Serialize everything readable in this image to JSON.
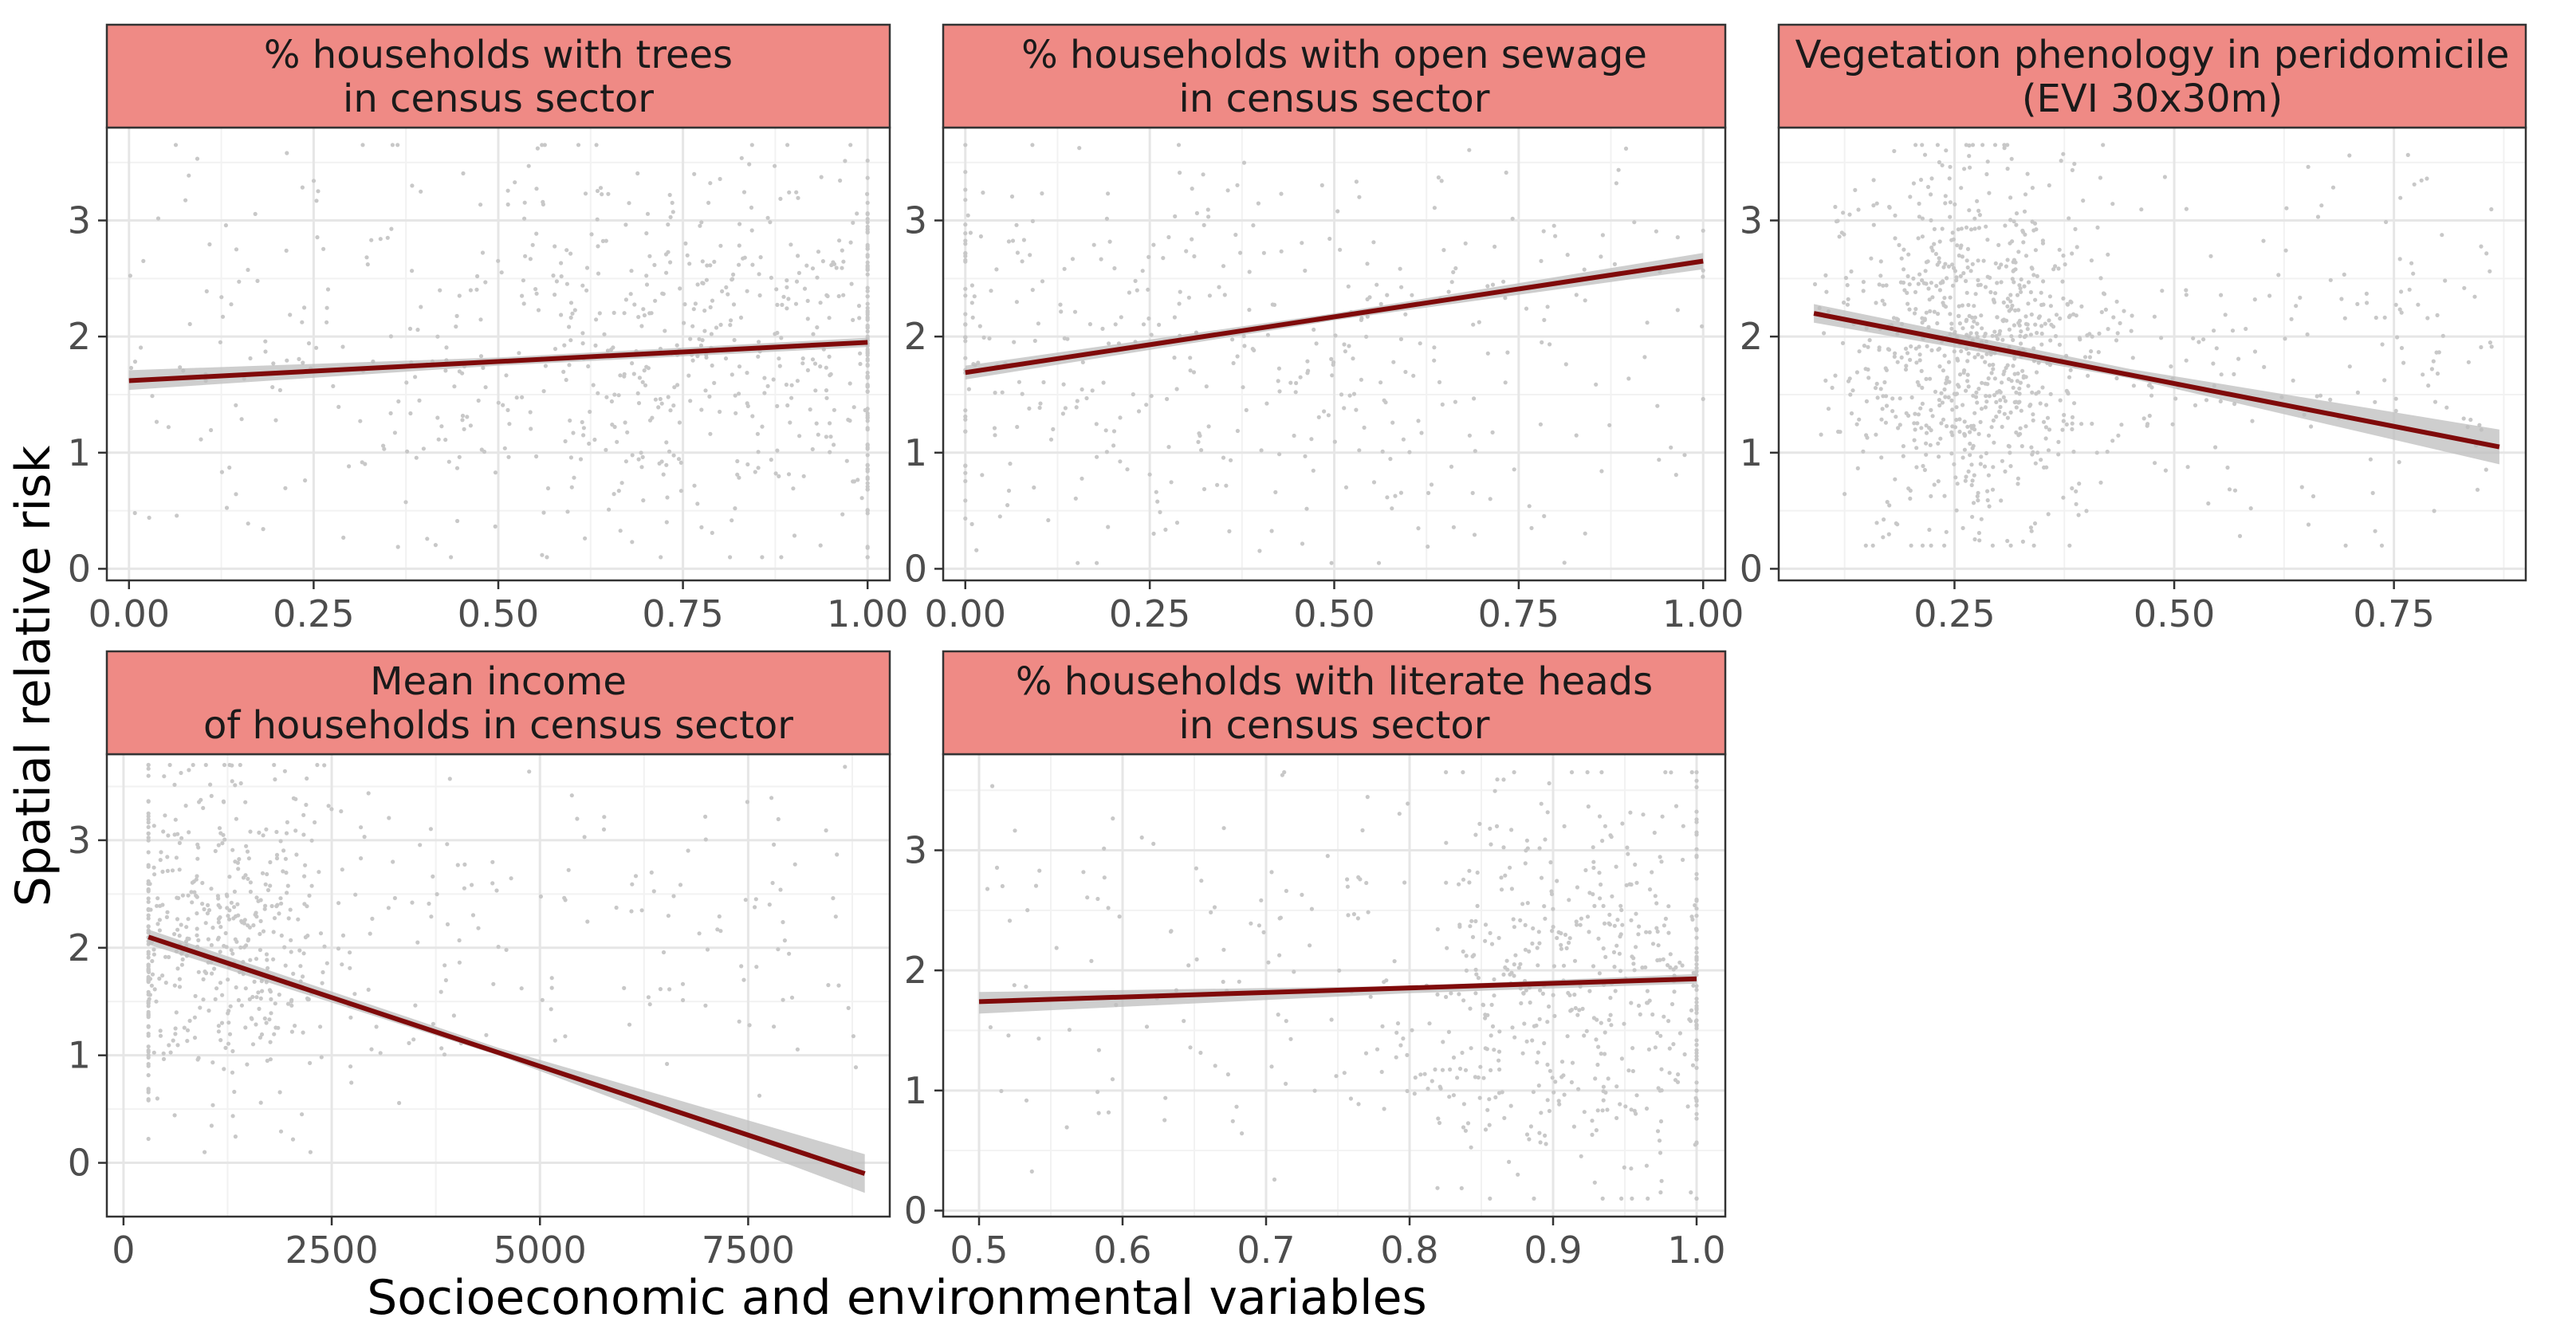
{
  "figure": {
    "ylabel": "Spatial relative risk",
    "xlabel": "Socioeconomic and environmental variables"
  },
  "colors": {
    "strip_fill": "#ef8a85",
    "strip_border": "#333333",
    "panel_border": "#333333",
    "grid_major": "#e6e6e6",
    "grid_minor": "#f2f2f2",
    "points": "#c8c8c8",
    "fit_line": "#7f0a0a",
    "ci_band": "#bdbdbd"
  },
  "chart_data": [
    {
      "type": "scatter",
      "title_lines": [
        "% households with trees",
        "in census sector"
      ],
      "xlim": [
        -0.03,
        1.03
      ],
      "ylim": [
        -0.1,
        3.8
      ],
      "xticks": [
        0,
        0.25,
        0.5,
        0.75,
        1.0
      ],
      "xtick_labels": [
        "0.00",
        "0.25",
        "0.50",
        "0.75",
        "1.00"
      ],
      "yticks": [
        0,
        1,
        2,
        3
      ],
      "ytick_labels": [
        "0",
        "1",
        "2",
        "3"
      ],
      "fit": {
        "x": [
          0.0,
          1.0
        ],
        "y": [
          1.62,
          1.95
        ]
      },
      "ci": {
        "x": [
          0.0,
          0.5,
          1.0
        ],
        "upper": [
          1.71,
          1.82,
          1.99
        ],
        "lower": [
          1.54,
          1.75,
          1.91
        ]
      },
      "points": {
        "n": 700,
        "x_min": 0.0,
        "x_max": 1.0,
        "y_min": 0.1,
        "y_max": 3.65,
        "mean_x": 0.8,
        "spread_x": 0.22,
        "mean_y": 1.9,
        "spread_y": 0.85
      }
    },
    {
      "type": "scatter",
      "title_lines": [
        "% households with open sewage",
        "in census sector"
      ],
      "xlim": [
        -0.03,
        1.03
      ],
      "ylim": [
        -0.1,
        3.8
      ],
      "xticks": [
        0,
        0.25,
        0.5,
        0.75,
        1.0
      ],
      "xtick_labels": [
        "0.00",
        "0.25",
        "0.50",
        "0.75",
        "1.00"
      ],
      "yticks": [
        0,
        1,
        2,
        3
      ],
      "ytick_labels": [
        "0",
        "1",
        "2",
        "3"
      ],
      "fit": {
        "x": [
          0.0,
          1.0
        ],
        "y": [
          1.69,
          2.65
        ]
      },
      "ci": {
        "x": [
          0.0,
          0.5,
          1.0
        ],
        "upper": [
          1.75,
          2.2,
          2.72
        ],
        "lower": [
          1.63,
          2.14,
          2.58
        ]
      },
      "points": {
        "n": 420,
        "x_min": 0.0,
        "x_max": 1.0,
        "y_min": 0.05,
        "y_max": 3.65,
        "mean_x": 0.3,
        "spread_x": 0.3,
        "mean_y": 1.9,
        "spread_y": 0.9
      }
    },
    {
      "type": "scatter",
      "title_lines": [
        "Vegetation phenology in peridomicile",
        "(EVI 30x30m)"
      ],
      "xlim": [
        0.05,
        0.9
      ],
      "ylim": [
        -0.1,
        3.8
      ],
      "xticks": [
        0.25,
        0.5,
        0.75
      ],
      "xtick_labels": [
        "0.25",
        "0.50",
        "0.75"
      ],
      "yticks": [
        0,
        1,
        2,
        3
      ],
      "ytick_labels": [
        "0",
        "1",
        "2",
        "3"
      ],
      "fit": {
        "x": [
          0.09,
          0.87
        ],
        "y": [
          2.2,
          1.05
        ]
      },
      "ci": {
        "x": [
          0.09,
          0.45,
          0.87
        ],
        "upper": [
          2.28,
          1.72,
          1.2
        ],
        "lower": [
          2.12,
          1.64,
          0.9
        ]
      },
      "points": {
        "n": 1000,
        "x_min": 0.09,
        "x_max": 0.87,
        "y_min": 0.2,
        "y_max": 3.65,
        "mean_x": 0.27,
        "spread_x": 0.07,
        "mean_y": 1.9,
        "spread_y": 0.75
      }
    },
    {
      "type": "scatter",
      "title_lines": [
        "Mean income",
        "of households in census sector"
      ],
      "xlim": [
        -200,
        9200
      ],
      "ylim": [
        -0.5,
        3.8
      ],
      "xticks": [
        0,
        2500,
        5000,
        7500
      ],
      "xtick_labels": [
        "0",
        "2500",
        "5000",
        "7500"
      ],
      "yticks": [
        0,
        1,
        2,
        3
      ],
      "ytick_labels": [
        "0",
        "1",
        "2",
        "3"
      ],
      "fit": {
        "x": [
          300,
          8900
        ],
        "y": [
          2.1,
          -0.1
        ]
      },
      "ci": {
        "x": [
          300,
          4500,
          8900
        ],
        "upper": [
          2.17,
          1.07,
          0.08
        ],
        "lower": [
          2.03,
          1.0,
          -0.28
        ]
      },
      "points": {
        "n": 650,
        "x_min": 300,
        "x_max": 8800,
        "y_min": 0.1,
        "y_max": 3.7,
        "mean_x": 1000,
        "spread_x": 800,
        "mean_y": 2.1,
        "spread_y": 0.8
      }
    },
    {
      "type": "scatter",
      "title_lines": [
        "% households with literate heads",
        "in census sector"
      ],
      "xlim": [
        0.475,
        1.02
      ],
      "ylim": [
        -0.05,
        3.8
      ],
      "xticks": [
        0.5,
        0.6,
        0.7,
        0.8,
        0.9,
        1.0
      ],
      "xtick_labels": [
        "0.5",
        "0.6",
        "0.7",
        "0.8",
        "0.9",
        "1.0"
      ],
      "yticks": [
        0,
        1,
        2,
        3
      ],
      "ytick_labels": [
        "0",
        "1",
        "2",
        "3"
      ],
      "fit": {
        "x": [
          0.5,
          1.0
        ],
        "y": [
          1.74,
          1.93
        ]
      },
      "ci": {
        "x": [
          0.5,
          0.8,
          1.0
        ],
        "upper": [
          1.82,
          1.87,
          1.97
        ],
        "lower": [
          1.64,
          1.81,
          1.89
        ]
      },
      "points": {
        "n": 650,
        "x_min": 0.5,
        "x_max": 1.0,
        "y_min": 0.1,
        "y_max": 3.65,
        "mean_x": 0.92,
        "spread_x": 0.07,
        "mean_y": 1.9,
        "spread_y": 0.85
      }
    }
  ]
}
